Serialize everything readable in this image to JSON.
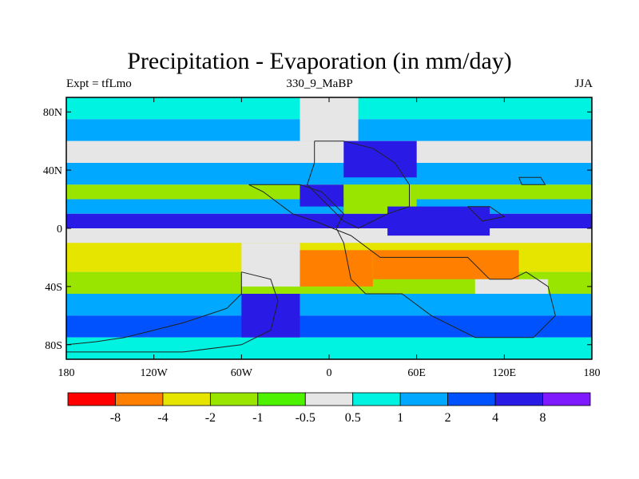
{
  "chart_data": {
    "type": "heatmap",
    "title": "Precipitation - Evaporation (in mm/day)",
    "left_label": "Expt = tfLmo",
    "center_label": "330_9_MaBP",
    "right_label": "JJA",
    "x_ticks": [
      {
        "value": -180,
        "label": "180"
      },
      {
        "value": -120,
        "label": "120W"
      },
      {
        "value": -60,
        "label": "60W"
      },
      {
        "value": 0,
        "label": "0"
      },
      {
        "value": 60,
        "label": "60E"
      },
      {
        "value": 120,
        "label": "120E"
      },
      {
        "value": 180,
        "label": "180"
      }
    ],
    "y_ticks": [
      {
        "value": 80,
        "label": "80N"
      },
      {
        "value": 40,
        "label": "40N"
      },
      {
        "value": 0,
        "label": "0"
      },
      {
        "value": -40,
        "label": "40S"
      },
      {
        "value": -80,
        "label": "80S"
      }
    ],
    "xlim": [
      -180,
      180
    ],
    "ylim": [
      -90,
      90
    ],
    "colorbar": {
      "colors": [
        "#ff0000",
        "#ff7f00",
        "#e5e500",
        "#99e500",
        "#4cf200",
        "#e6e6e6",
        "#00f2e0",
        "#00a8ff",
        "#0052ff",
        "#2a1ae6",
        "#7f1aff"
      ],
      "labels": [
        "-8",
        "-4",
        "-2",
        "-1",
        "-0.5",
        "0.5",
        "1",
        "2",
        "4",
        "8"
      ]
    },
    "latitude_bands": [
      {
        "lat_from": 90,
        "lat_to": 75,
        "level": 6
      },
      {
        "lat_from": 75,
        "lat_to": 60,
        "level": 7
      },
      {
        "lat_from": 60,
        "lat_to": 45,
        "level": 5
      },
      {
        "lat_from": 45,
        "lat_to": 30,
        "level": 7
      },
      {
        "lat_from": 30,
        "lat_to": 20,
        "level": 3
      },
      {
        "lat_from": 20,
        "lat_to": 10,
        "level": 7
      },
      {
        "lat_from": 10,
        "lat_to": 0,
        "level": 9
      },
      {
        "lat_from": 0,
        "lat_to": -10,
        "level": 5
      },
      {
        "lat_from": -10,
        "lat_to": -30,
        "level": 2
      },
      {
        "lat_from": -30,
        "lat_to": -45,
        "level": 3
      },
      {
        "lat_from": -45,
        "lat_to": -60,
        "level": 7
      },
      {
        "lat_from": -60,
        "lat_to": -75,
        "level": 8
      },
      {
        "lat_from": -75,
        "lat_to": -90,
        "level": 6
      }
    ],
    "regions": [
      {
        "lon_from": -20,
        "lon_to": 20,
        "lat_from": 60,
        "lat_to": 90,
        "level": 5
      },
      {
        "lon_from": 10,
        "lon_to": 60,
        "lat_from": 35,
        "lat_to": 60,
        "level": 9
      },
      {
        "lon_from": -20,
        "lon_to": 10,
        "lat_from": 15,
        "lat_to": 30,
        "level": 9
      },
      {
        "lon_from": 10,
        "lon_to": 60,
        "lat_from": 10,
        "lat_to": 30,
        "level": 3
      },
      {
        "lon_from": 40,
        "lon_to": 110,
        "lat_from": -5,
        "lat_to": 15,
        "level": 9
      },
      {
        "lon_from": -60,
        "lon_to": -20,
        "lat_from": -40,
        "lat_to": -10,
        "level": 5
      },
      {
        "lon_from": -20,
        "lon_to": 30,
        "lat_from": -40,
        "lat_to": -15,
        "level": 1
      },
      {
        "lon_from": 30,
        "lon_to": 130,
        "lat_from": -35,
        "lat_to": -15,
        "level": 1
      },
      {
        "lon_from": -60,
        "lon_to": -20,
        "lat_from": -75,
        "lat_to": -45,
        "level": 9
      },
      {
        "lon_from": 100,
        "lon_to": 150,
        "lat_from": -45,
        "lat_to": -35,
        "level": 5
      }
    ],
    "continents": [
      [
        [
          -10,
          60
        ],
        [
          10,
          60
        ],
        [
          30,
          55
        ],
        [
          45,
          45
        ],
        [
          55,
          30
        ],
        [
          55,
          15
        ],
        [
          40,
          10
        ],
        [
          20,
          0
        ],
        [
          10,
          5
        ],
        [
          -5,
          20
        ],
        [
          -15,
          30
        ],
        [
          -10,
          45
        ],
        [
          -10,
          60
        ]
      ],
      [
        [
          -55,
          30
        ],
        [
          -20,
          30
        ],
        [
          -5,
          25
        ],
        [
          10,
          10
        ],
        [
          5,
          0
        ],
        [
          10,
          -10
        ],
        [
          15,
          -35
        ],
        [
          25,
          -45
        ],
        [
          50,
          -45
        ],
        [
          70,
          -60
        ],
        [
          100,
          -75
        ],
        [
          140,
          -75
        ],
        [
          155,
          -60
        ],
        [
          150,
          -40
        ],
        [
          135,
          -30
        ],
        [
          125,
          -35
        ],
        [
          110,
          -35
        ],
        [
          95,
          -20
        ],
        [
          60,
          -20
        ],
        [
          35,
          -20
        ],
        [
          15,
          -5
        ],
        [
          -10,
          5
        ],
        [
          -25,
          10
        ],
        [
          -45,
          25
        ],
        [
          -55,
          30
        ]
      ],
      [
        [
          -60,
          -30
        ],
        [
          -60,
          -45
        ],
        [
          -70,
          -55
        ],
        [
          -100,
          -65
        ],
        [
          -140,
          -75
        ],
        [
          -160,
          -78
        ],
        [
          -180,
          -80
        ],
        [
          -180,
          -85
        ],
        [
          -100,
          -85
        ],
        [
          -60,
          -80
        ],
        [
          -40,
          -70
        ],
        [
          -35,
          -50
        ],
        [
          -40,
          -35
        ],
        [
          -60,
          -30
        ]
      ],
      [
        [
          95,
          15
        ],
        [
          110,
          15
        ],
        [
          120,
          8
        ],
        [
          105,
          5
        ],
        [
          95,
          15
        ]
      ],
      [
        [
          130,
          35
        ],
        [
          145,
          35
        ],
        [
          148,
          30
        ],
        [
          132,
          30
        ],
        [
          130,
          35
        ]
      ]
    ]
  }
}
